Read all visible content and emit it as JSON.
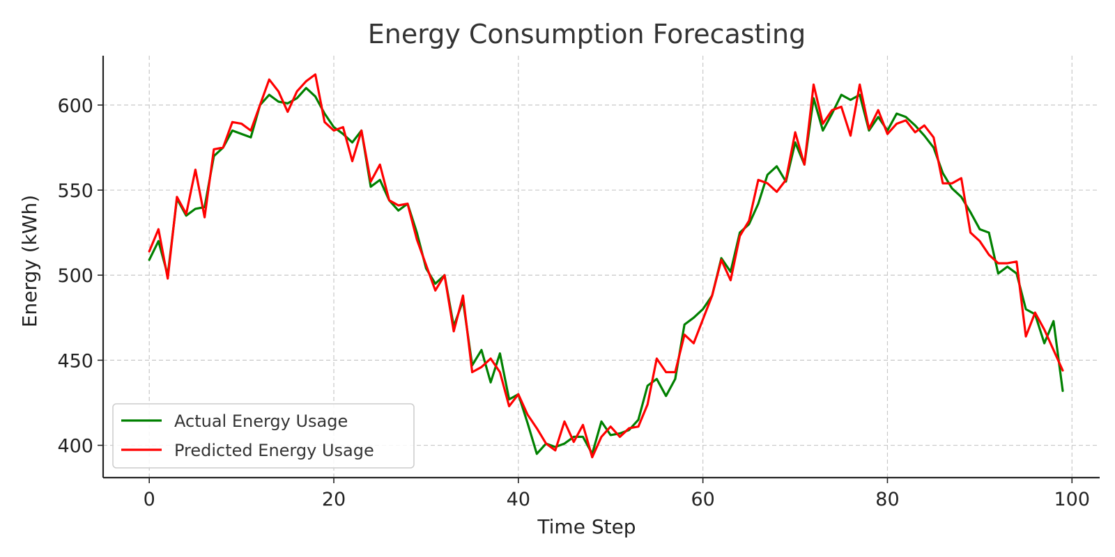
{
  "chart_data": {
    "type": "line",
    "title": "Energy Consumption Forecasting",
    "xlabel": "Time Step",
    "ylabel": "Energy (kWh)",
    "xlim": [
      -5,
      103
    ],
    "ylim": [
      381,
      629
    ],
    "xticks": [
      0,
      20,
      40,
      60,
      80,
      100
    ],
    "yticks": [
      400,
      450,
      500,
      550,
      600
    ],
    "grid": true,
    "legend_position": "bottom-left",
    "x": [
      0,
      1,
      2,
      3,
      4,
      5,
      6,
      7,
      8,
      9,
      10,
      11,
      12,
      13,
      14,
      15,
      16,
      17,
      18,
      19,
      20,
      21,
      22,
      23,
      24,
      25,
      26,
      27,
      28,
      29,
      30,
      31,
      32,
      33,
      34,
      35,
      36,
      37,
      38,
      39,
      40,
      41,
      42,
      43,
      44,
      45,
      46,
      47,
      48,
      49,
      50,
      51,
      52,
      53,
      54,
      55,
      56,
      57,
      58,
      59,
      60,
      61,
      62,
      63,
      64,
      65,
      66,
      67,
      68,
      69,
      70,
      71,
      72,
      73,
      74,
      75,
      76,
      77,
      78,
      79,
      80,
      81,
      82,
      83,
      84,
      85,
      86,
      87,
      88,
      89,
      90,
      91,
      92,
      93,
      94,
      95,
      96,
      97,
      98,
      99
    ],
    "series": [
      {
        "name": "Actual Energy Usage",
        "color": "#008000",
        "values": [
          509,
          520,
          500,
          545,
          535,
          539,
          540,
          570,
          575,
          585,
          583,
          581,
          600,
          606,
          602,
          601,
          604,
          610,
          605,
          595,
          587,
          583,
          578,
          585,
          552,
          556,
          544,
          538,
          542,
          525,
          504,
          495,
          500,
          470,
          485,
          447,
          456,
          437,
          454,
          427,
          430,
          413,
          395,
          401,
          399,
          401,
          405,
          405,
          395,
          414,
          406,
          407,
          409,
          415,
          435,
          439,
          429,
          439,
          471,
          475,
          480,
          488,
          510,
          502,
          525,
          530,
          542,
          559,
          564,
          555,
          578,
          565,
          604,
          585,
          595,
          606,
          603,
          606,
          585,
          593,
          585,
          595,
          593,
          588,
          582,
          575,
          560,
          551,
          546,
          537,
          527,
          525,
          501,
          505,
          501,
          480,
          477,
          460,
          473,
          432
        ]
      },
      {
        "name": "Predicted Energy Usage",
        "color": "#ff0000",
        "values": [
          514,
          527,
          498,
          546,
          536,
          562,
          534,
          574,
          575,
          590,
          589,
          585,
          600,
          615,
          608,
          596,
          608,
          614,
          618,
          590,
          585,
          587,
          567,
          585,
          555,
          565,
          544,
          541,
          542,
          521,
          506,
          491,
          500,
          467,
          488,
          443,
          446,
          451,
          443,
          423,
          430,
          418,
          410,
          401,
          397,
          414,
          402,
          412,
          393,
          405,
          411,
          405,
          410,
          411,
          424,
          451,
          443,
          443,
          465,
          460,
          474,
          488,
          509,
          497,
          523,
          532,
          556,
          554,
          549,
          556,
          584,
          565,
          612,
          589,
          597,
          599,
          582,
          612,
          586,
          597,
          583,
          589,
          591,
          584,
          588,
          581,
          554,
          554,
          557,
          525,
          520,
          512,
          507,
          507,
          508,
          464,
          478,
          468,
          456,
          444
        ]
      }
    ]
  }
}
